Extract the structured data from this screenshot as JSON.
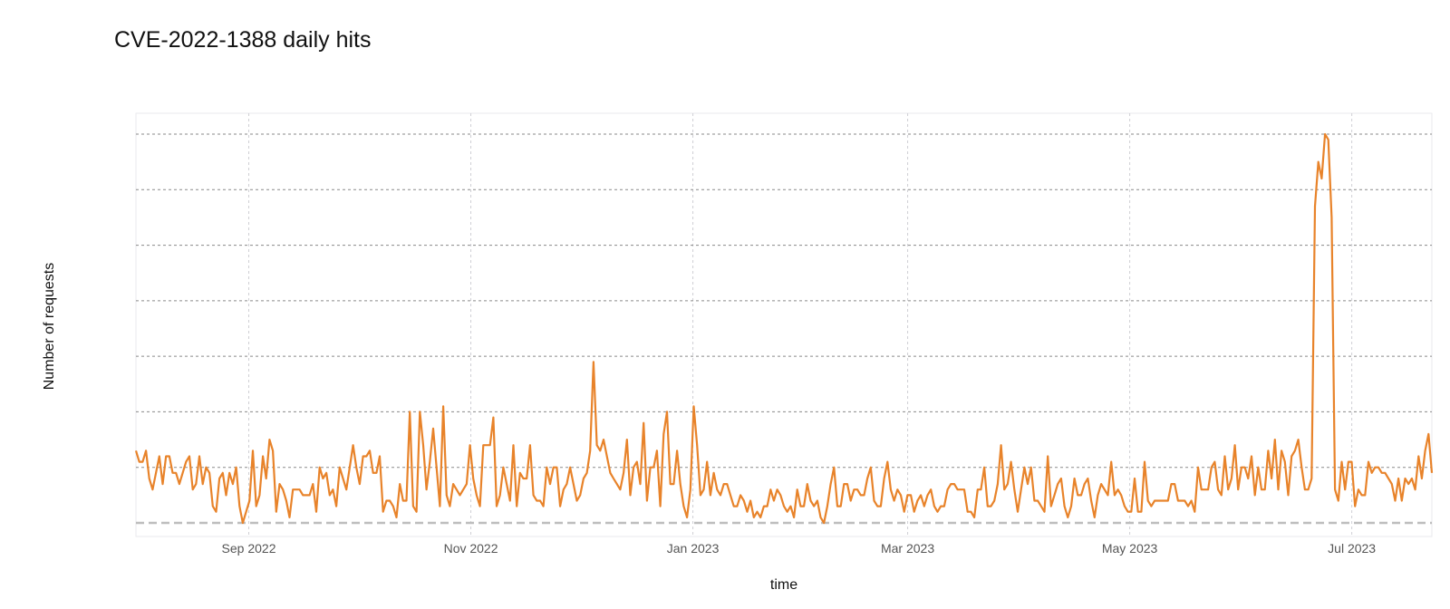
{
  "chart_data": {
    "type": "line",
    "title": "CVE-2022-1388 daily hits",
    "xlabel": "time",
    "ylabel": "Number of requests",
    "x_range": [
      "2022-08-01",
      "2023-07-23"
    ],
    "y_tick_labels_shown": false,
    "grid": true,
    "baseline": "dashed",
    "x_ticks": [
      {
        "date": "2022-09-01",
        "label": "Sep 2022"
      },
      {
        "date": "2022-11-01",
        "label": "Nov 2022"
      },
      {
        "date": "2023-01-01",
        "label": "Jan 2023"
      },
      {
        "date": "2023-03-01",
        "label": "Mar 2023"
      },
      {
        "date": "2023-05-01",
        "label": "May 2023"
      },
      {
        "date": "2023-07-01",
        "label": "Jul 2023"
      }
    ],
    "series": [
      {
        "color": "#e8832a",
        "values": [
          13,
          11,
          11,
          13,
          8,
          6,
          9,
          12,
          7,
          12,
          12,
          9,
          9,
          7,
          9,
          11,
          12,
          6,
          7,
          12,
          7,
          10,
          9,
          3,
          2,
          8,
          9,
          5,
          9,
          7,
          10,
          3,
          0,
          2,
          4,
          13,
          3,
          5,
          12,
          8,
          15,
          13,
          2,
          7,
          6,
          4,
          1,
          6,
          6,
          6,
          5,
          5,
          5,
          7,
          2,
          10,
          8,
          9,
          5,
          6,
          3,
          10,
          8,
          6,
          10,
          14,
          10,
          7,
          12,
          12,
          13,
          9,
          9,
          12,
          2,
          4,
          4,
          3,
          1,
          7,
          4,
          4,
          20,
          3,
          2,
          20,
          14,
          6,
          11,
          17,
          10,
          3,
          21,
          5,
          3,
          7,
          6,
          5,
          6,
          7,
          14,
          8,
          5,
          3,
          14,
          14,
          14,
          19,
          3,
          5,
          10,
          7,
          4,
          14,
          3,
          9,
          8,
          8,
          14,
          5,
          4,
          4,
          3,
          10,
          7,
          10,
          10,
          3,
          6,
          7,
          10,
          7,
          4,
          5,
          8,
          9,
          13,
          29,
          14,
          13,
          15,
          12,
          9,
          8,
          7,
          6,
          9,
          15,
          5,
          10,
          11,
          7,
          18,
          4,
          10,
          10,
          13,
          3,
          16,
          20,
          7,
          7,
          13,
          7,
          3,
          1,
          6,
          21,
          14,
          5,
          6,
          11,
          5,
          9,
          6,
          5,
          7,
          7,
          5,
          3,
          3,
          5,
          4,
          2,
          4,
          1,
          2,
          1,
          3,
          3,
          6,
          4,
          6,
          5,
          3,
          2,
          3,
          1,
          6,
          3,
          3,
          7,
          4,
          3,
          4,
          1,
          0,
          3,
          7,
          10,
          3,
          3,
          7,
          7,
          4,
          6,
          6,
          5,
          5,
          8,
          10,
          4,
          3,
          3,
          8,
          11,
          6,
          4,
          6,
          5,
          2,
          5,
          5,
          2,
          4,
          5,
          3,
          5,
          6,
          3,
          2,
          3,
          3,
          6,
          7,
          7,
          6,
          6,
          6,
          2,
          2,
          1,
          6,
          6,
          10,
          3,
          3,
          4,
          7,
          14,
          6,
          7,
          11,
          6,
          2,
          6,
          10,
          7,
          10,
          4,
          4,
          3,
          2,
          12,
          3,
          5,
          7,
          8,
          3,
          1,
          3,
          8,
          5,
          5,
          7,
          8,
          4,
          1,
          5,
          7,
          6,
          5,
          11,
          5,
          6,
          5,
          3,
          2,
          2,
          8,
          2,
          2,
          11,
          4,
          3,
          4,
          4,
          4,
          4,
          4,
          7,
          7,
          4,
          4,
          4,
          3,
          4,
          2,
          10,
          6,
          6,
          6,
          10,
          11,
          6,
          5,
          12,
          6,
          8,
          14,
          6,
          10,
          10,
          8,
          12,
          5,
          10,
          6,
          6,
          13,
          8,
          15,
          6,
          13,
          11,
          5,
          12,
          13,
          15,
          10,
          6,
          6,
          8,
          57,
          65,
          62,
          70,
          69,
          55,
          6,
          4,
          11,
          6,
          11,
          11,
          3,
          6,
          5,
          5,
          11,
          9,
          10,
          10,
          9,
          9,
          8,
          7,
          4,
          8,
          4,
          8,
          7,
          8,
          6,
          12,
          8,
          13,
          16,
          9
        ],
        "value_unit": "estimated on an unlabeled scale where the dashed baseline is 0 and the top dotted gridline is 70"
      }
    ]
  }
}
